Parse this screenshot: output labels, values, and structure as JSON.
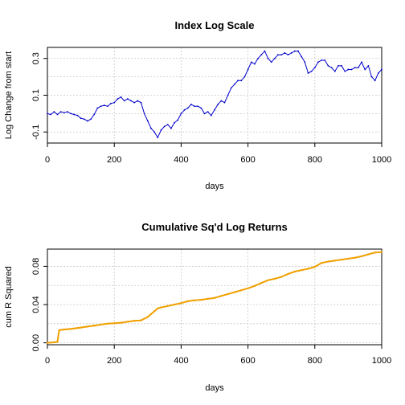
{
  "chart_data": [
    {
      "type": "line",
      "title": "Index Log Scale",
      "xlabel": "days",
      "ylabel": "Log Change from start",
      "xlim": [
        0,
        1000
      ],
      "ylim": [
        -0.16,
        0.36
      ],
      "xticks": [
        0,
        200,
        400,
        600,
        800,
        1000
      ],
      "xtick_labels": [
        "0",
        "200",
        "400",
        "600",
        "800",
        "1000"
      ],
      "yticks": [
        -0.1,
        0.1,
        0.3
      ],
      "ytick_labels": [
        "-0.1",
        "0.1",
        "0.3"
      ],
      "grid": true,
      "series": [
        {
          "color": "#0000cc",
          "x": [
            0,
            10,
            20,
            30,
            40,
            50,
            60,
            70,
            80,
            90,
            100,
            110,
            120,
            130,
            140,
            150,
            160,
            170,
            180,
            190,
            200,
            210,
            220,
            230,
            240,
            250,
            260,
            270,
            280,
            290,
            300,
            310,
            320,
            330,
            340,
            350,
            360,
            370,
            380,
            390,
            400,
            410,
            420,
            430,
            440,
            450,
            460,
            470,
            480,
            490,
            500,
            510,
            520,
            530,
            540,
            550,
            560,
            570,
            580,
            590,
            600,
            610,
            620,
            630,
            640,
            650,
            660,
            670,
            680,
            690,
            700,
            710,
            720,
            730,
            740,
            750,
            760,
            770,
            780,
            790,
            800,
            810,
            820,
            830,
            840,
            850,
            860,
            870,
            880,
            890,
            900,
            910,
            920,
            930,
            940,
            950,
            960,
            970,
            980,
            990,
            1000
          ],
          "values": [
            0.0,
            -0.005,
            0.01,
            -0.005,
            0.01,
            0.005,
            0.01,
            0.0,
            -0.005,
            -0.01,
            -0.025,
            -0.03,
            -0.04,
            -0.03,
            -0.005,
            0.03,
            0.04,
            0.045,
            0.04,
            0.055,
            0.06,
            0.08,
            0.09,
            0.07,
            0.08,
            0.07,
            0.06,
            0.07,
            0.06,
            0.0,
            -0.04,
            -0.08,
            -0.1,
            -0.13,
            -0.09,
            -0.07,
            -0.06,
            -0.08,
            -0.05,
            -0.035,
            0.0,
            0.02,
            0.03,
            0.05,
            0.04,
            0.04,
            0.03,
            0.0,
            0.01,
            -0.01,
            0.02,
            0.05,
            0.07,
            0.06,
            0.1,
            0.14,
            0.16,
            0.18,
            0.18,
            0.2,
            0.24,
            0.28,
            0.27,
            0.3,
            0.32,
            0.34,
            0.3,
            0.28,
            0.3,
            0.32,
            0.32,
            0.33,
            0.32,
            0.33,
            0.34,
            0.34,
            0.31,
            0.28,
            0.22,
            0.23,
            0.25,
            0.28,
            0.29,
            0.29,
            0.26,
            0.25,
            0.23,
            0.26,
            0.26,
            0.23,
            0.24,
            0.24,
            0.25,
            0.25,
            0.28,
            0.24,
            0.26,
            0.2,
            0.18,
            0.22,
            0.24
          ]
        }
      ]
    },
    {
      "type": "line",
      "title": "Cumulative Sq'd Log Returns",
      "xlabel": "days",
      "ylabel": "cum R Squared",
      "xlim": [
        0,
        1000
      ],
      "ylim": [
        -0.002,
        0.098
      ],
      "xticks": [
        0,
        200,
        400,
        600,
        800,
        1000
      ],
      "xtick_labels": [
        "0",
        "200",
        "400",
        "600",
        "800",
        "1000"
      ],
      "yticks": [
        0.0,
        0.04,
        0.08
      ],
      "ytick_labels": [
        "0.00",
        "0.04",
        "0.08"
      ],
      "grid": true,
      "series": [
        {
          "color": "#f0a000",
          "x": [
            0,
            10,
            20,
            30,
            35,
            40,
            50,
            60,
            70,
            80,
            90,
            100,
            120,
            140,
            160,
            180,
            200,
            220,
            240,
            260,
            280,
            300,
            310,
            320,
            330,
            340,
            360,
            380,
            400,
            420,
            440,
            460,
            480,
            500,
            520,
            540,
            560,
            580,
            600,
            620,
            640,
            660,
            680,
            700,
            720,
            740,
            760,
            780,
            800,
            820,
            840,
            860,
            880,
            900,
            920,
            940,
            960,
            980,
            1000
          ],
          "values": [
            0.0,
            0.0003,
            0.0005,
            0.001,
            0.013,
            0.0135,
            0.014,
            0.0142,
            0.0145,
            0.015,
            0.0155,
            0.016,
            0.017,
            0.018,
            0.019,
            0.02,
            0.0205,
            0.021,
            0.022,
            0.023,
            0.0235,
            0.027,
            0.03,
            0.033,
            0.036,
            0.037,
            0.0385,
            0.04,
            0.0415,
            0.0435,
            0.0445,
            0.045,
            0.046,
            0.047,
            0.049,
            0.051,
            0.053,
            0.055,
            0.057,
            0.0595,
            0.0625,
            0.0655,
            0.067,
            0.069,
            0.072,
            0.0745,
            0.076,
            0.0775,
            0.0795,
            0.0835,
            0.085,
            0.086,
            0.087,
            0.088,
            0.089,
            0.0905,
            0.0925,
            0.0945,
            0.095
          ]
        }
      ]
    }
  ]
}
